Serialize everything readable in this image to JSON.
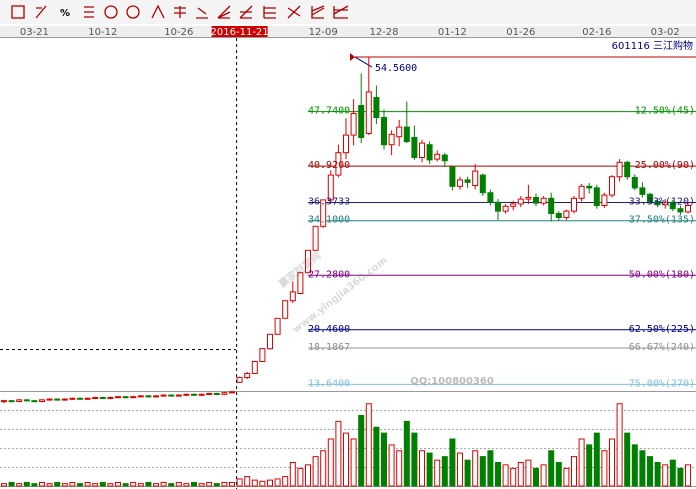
{
  "chart_data": {
    "type": "candlestick",
    "toolbar_text": "%",
    "stock_label": "601116 三江购物",
    "watermarks": [
      "赢家财富网",
      "www.yingjia360.com",
      "QQ:100800360"
    ],
    "categories": [
      null,
      null,
      null,
      null,
      "03-21",
      null,
      null,
      null,
      null,
      null,
      null,
      null,
      null,
      "10-12",
      null,
      null,
      null,
      null,
      null,
      null,
      null,
      null,
      null,
      "10-26",
      null,
      null,
      null,
      null,
      null,
      null,
      null,
      "2016-11-21",
      null,
      null,
      null,
      null,
      null,
      null,
      null,
      null,
      null,
      null,
      "12-09",
      null,
      null,
      null,
      null,
      null,
      null,
      null,
      "12-28",
      null,
      null,
      null,
      null,
      null,
      null,
      null,
      null,
      "01-12",
      null,
      null,
      null,
      null,
      null,
      null,
      null,
      null,
      "01-26",
      null,
      null,
      null,
      null,
      null,
      null,
      null,
      null,
      null,
      "02-16",
      null,
      null,
      null,
      null,
      null,
      null,
      null,
      null,
      "03-02",
      null,
      null,
      null
    ],
    "cursor_category": 31,
    "up_color": "#e00000",
    "down_color": "#008000",
    "ohlc": [
      [
        11.5,
        11.7,
        11.3,
        11.6
      ],
      [
        11.6,
        11.7,
        11.4,
        11.5
      ],
      [
        11.5,
        11.8,
        11.4,
        11.7
      ],
      [
        11.7,
        11.8,
        11.5,
        11.6
      ],
      [
        11.6,
        11.7,
        11.4,
        11.5
      ],
      [
        11.5,
        11.8,
        11.4,
        11.7
      ],
      [
        11.7,
        11.9,
        11.6,
        11.8
      ],
      [
        11.8,
        11.9,
        11.6,
        11.7
      ],
      [
        11.7,
        11.9,
        11.6,
        11.8
      ],
      [
        11.8,
        12.0,
        11.7,
        11.9
      ],
      [
        11.9,
        12.0,
        11.7,
        11.8
      ],
      [
        11.8,
        12.0,
        11.7,
        11.9
      ],
      [
        11.9,
        12.1,
        11.8,
        12.0
      ],
      [
        12.0,
        12.1,
        11.8,
        11.9
      ],
      [
        11.9,
        12.1,
        11.8,
        12.0
      ],
      [
        12.0,
        12.2,
        11.9,
        12.1
      ],
      [
        12.1,
        12.2,
        11.9,
        12.0
      ],
      [
        12.0,
        12.2,
        11.9,
        12.1
      ],
      [
        12.1,
        12.3,
        12.0,
        12.2
      ],
      [
        12.2,
        12.3,
        12.0,
        12.1
      ],
      [
        12.1,
        12.3,
        12.0,
        12.2
      ],
      [
        12.2,
        12.4,
        12.1,
        12.3
      ],
      [
        12.3,
        12.4,
        12.1,
        12.2
      ],
      [
        12.2,
        12.4,
        12.1,
        12.3
      ],
      [
        12.3,
        12.5,
        12.2,
        12.4
      ],
      [
        12.4,
        12.5,
        12.2,
        12.3
      ],
      [
        12.3,
        12.5,
        12.2,
        12.4
      ],
      [
        12.4,
        12.6,
        12.3,
        12.5
      ],
      [
        12.5,
        12.6,
        12.3,
        12.4
      ],
      [
        12.4,
        12.7,
        12.3,
        12.6
      ],
      [
        12.6,
        12.8,
        12.5,
        12.7
      ],
      [
        13.9,
        14.6,
        13.8,
        14.5
      ],
      [
        14.5,
        15.2,
        14.3,
        15.0
      ],
      [
        15.0,
        16.6,
        15.0,
        16.5
      ],
      [
        16.5,
        18.2,
        16.5,
        18.1
      ],
      [
        18.1,
        19.9,
        18.0,
        19.9
      ],
      [
        19.9,
        21.9,
        19.9,
        21.9
      ],
      [
        21.9,
        24.1,
        21.9,
        24.1
      ],
      [
        24.1,
        26.5,
        23.8,
        25.2
      ],
      [
        25.0,
        27.7,
        24.9,
        27.6
      ],
      [
        27.6,
        30.4,
        27.6,
        30.4
      ],
      [
        30.4,
        33.4,
        30.4,
        33.4
      ],
      [
        33.4,
        36.7,
        33.2,
        36.7
      ],
      [
        36.7,
        40.4,
        36.5,
        39.8
      ],
      [
        39.8,
        43.6,
        39.5,
        42.6
      ],
      [
        42.6,
        46.9,
        41.8,
        44.8
      ],
      [
        44.8,
        49.3,
        43.5,
        47.5
      ],
      [
        48.5,
        52.5,
        43.8,
        44.5
      ],
      [
        45.0,
        54.56,
        44.8,
        50.2
      ],
      [
        49.5,
        51.0,
        46.2,
        47.0
      ],
      [
        47.0,
        48.0,
        43.0,
        43.6
      ],
      [
        43.6,
        45.4,
        42.3,
        44.9
      ],
      [
        44.6,
        46.7,
        43.4,
        45.8
      ],
      [
        45.8,
        49.0,
        43.8,
        44.0
      ],
      [
        44.5,
        46.0,
        41.7,
        42.0
      ],
      [
        42.0,
        44.2,
        41.4,
        43.8
      ],
      [
        43.6,
        44.0,
        41.2,
        41.7
      ],
      [
        41.8,
        42.9,
        41.5,
        42.4
      ],
      [
        42.3,
        42.6,
        40.8,
        41.6
      ],
      [
        40.8,
        41.0,
        37.9,
        38.4
      ],
      [
        38.4,
        39.6,
        38.0,
        39.2
      ],
      [
        39.2,
        39.6,
        38.2,
        38.9
      ],
      [
        38.5,
        41.2,
        38.0,
        40.3
      ],
      [
        39.8,
        40.0,
        37.2,
        37.6
      ],
      [
        37.6,
        38.0,
        36.0,
        36.4
      ],
      [
        36.4,
        36.8,
        34.2,
        35.3
      ],
      [
        35.3,
        36.2,
        35.0,
        35.9
      ],
      [
        35.9,
        36.6,
        35.4,
        36.2
      ],
      [
        36.2,
        37.2,
        35.8,
        36.8
      ],
      [
        36.8,
        38.6,
        36.2,
        37.0
      ],
      [
        37.0,
        37.5,
        35.9,
        36.3
      ],
      [
        36.3,
        37.2,
        36.0,
        36.9
      ],
      [
        36.9,
        37.6,
        34.0,
        35.0
      ],
      [
        35.0,
        35.3,
        34.1,
        34.5
      ],
      [
        34.5,
        35.5,
        34.2,
        35.3
      ],
      [
        35.3,
        37.2,
        35.0,
        36.9
      ],
      [
        36.9,
        38.7,
        36.5,
        38.4
      ],
      [
        38.4,
        38.8,
        37.5,
        38.2
      ],
      [
        38.2,
        38.6,
        35.6,
        36.0
      ],
      [
        36.0,
        37.6,
        35.7,
        37.3
      ],
      [
        37.3,
        39.8,
        37.0,
        39.6
      ],
      [
        39.6,
        41.8,
        39.0,
        41.4
      ],
      [
        41.4,
        41.6,
        39.2,
        39.6
      ],
      [
        39.5,
        39.9,
        37.9,
        38.2
      ],
      [
        38.2,
        38.9,
        37.0,
        37.4
      ],
      [
        37.4,
        37.6,
        36.2,
        36.5
      ],
      [
        36.5,
        36.9,
        35.8,
        36.1
      ],
      [
        36.1,
        36.8,
        35.6,
        36.4
      ],
      [
        36.4,
        36.7,
        35.3,
        35.6
      ],
      [
        35.6,
        36.0,
        34.8,
        35.2
      ],
      [
        35.2,
        36.4,
        35.0,
        36.0
      ]
    ],
    "volume": [
      2,
      3,
      2,
      3,
      2,
      3,
      2,
      3,
      2,
      3,
      2,
      3,
      2,
      3,
      2,
      3,
      2,
      3,
      2,
      3,
      2,
      3,
      2,
      3,
      2,
      3,
      2,
      3,
      2,
      3,
      3,
      6,
      8,
      5,
      4,
      5,
      6,
      8,
      20,
      15,
      18,
      25,
      30,
      40,
      55,
      45,
      40,
      60,
      70,
      50,
      45,
      35,
      30,
      55,
      45,
      30,
      28,
      22,
      25,
      40,
      28,
      22,
      30,
      25,
      30,
      20,
      18,
      15,
      20,
      22,
      15,
      18,
      30,
      20,
      15,
      25,
      40,
      35,
      45,
      30,
      40,
      70,
      45,
      35,
      30,
      25,
      20,
      18,
      22,
      15,
      18
    ],
    "ylim": [
      11.06,
      56.94
    ],
    "vlim": [
      0,
      80
    ],
    "high_mark": {
      "value": 54.56,
      "label": "54.5600",
      "color": "#c00000"
    },
    "levels": [
      {
        "price": {
          "value": 47.74,
          "label": "47.7400"
        },
        "ratio": "12.50%(45)",
        "color": "#009000"
      },
      {
        "price": {
          "value": 40.92,
          "label": "40.9200"
        },
        "ratio": "25.00%(90)",
        "color": "#a00000"
      },
      {
        "price": {
          "value": 36.3733,
          "label": "36.3733"
        },
        "ratio": "33.33%(120)",
        "color": "#202080"
      },
      {
        "price": {
          "value": 34.1,
          "label": "34.1000"
        },
        "ratio": "37.50%(135)",
        "color": "#208080"
      },
      {
        "price": {
          "value": 27.28,
          "label": "27.2800"
        },
        "ratio": "50.00%(180)",
        "color": "#800080"
      },
      {
        "price": {
          "value": 20.46,
          "label": "20.4600"
        },
        "ratio": "62.50%(225)",
        "color": "#000080"
      },
      {
        "price": {
          "value": 18.1867,
          "label": "18.1867"
        },
        "ratio": "66.67%(240)",
        "color": "#909090"
      },
      {
        "price": {
          "value": 13.64,
          "label": "13.6400"
        },
        "ratio": "75.00%(270)",
        "color": "#80c0e0"
      }
    ]
  }
}
